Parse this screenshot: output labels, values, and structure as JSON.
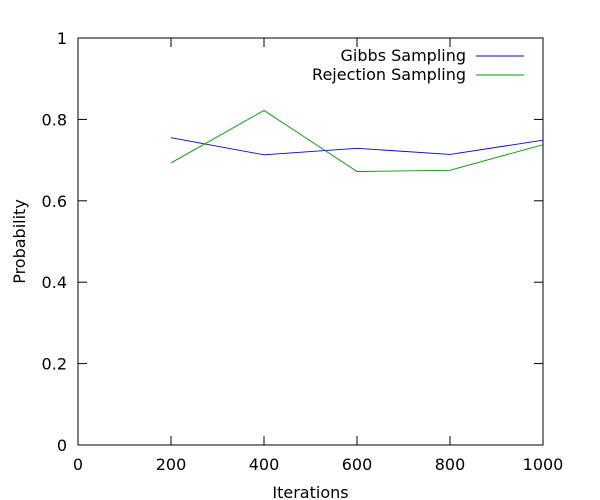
{
  "chart_data": {
    "type": "line",
    "title": "",
    "xlabel": "Iterations",
    "ylabel": "Probability",
    "xlim": [
      0,
      1000
    ],
    "ylim": [
      0,
      1
    ],
    "x_ticks": [
      "0",
      "200",
      "400",
      "600",
      "800",
      "1000"
    ],
    "y_ticks": [
      "0",
      "0.2",
      "0.4",
      "0.6",
      "0.8",
      "1"
    ],
    "grid": false,
    "legend_position": "top-right",
    "series": [
      {
        "name": "Gibbs Sampling",
        "color": "#0000ff",
        "x": [
          200,
          400,
          600,
          800,
          1000
        ],
        "y": [
          0.755,
          0.713,
          0.729,
          0.714,
          0.749
        ]
      },
      {
        "name": "Rejection Sampling",
        "color": "#009900",
        "x": [
          200,
          400,
          600,
          800,
          1000
        ],
        "y": [
          0.693,
          0.822,
          0.672,
          0.675,
          0.738
        ]
      }
    ]
  }
}
